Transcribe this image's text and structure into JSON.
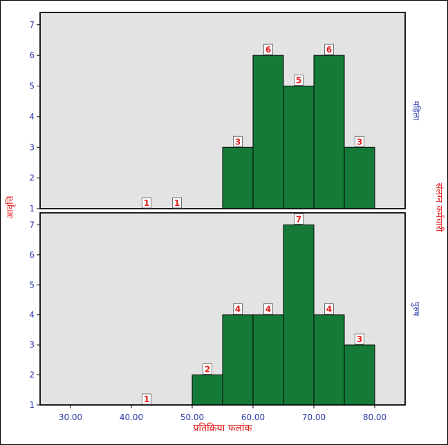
{
  "chart_data": {
    "type": "bar",
    "x_axis_label": "प्रतिक्रिया फलांक",
    "y_axis_label": "आवृत्ति",
    "right_label": "संलग्न कर्मचारी",
    "x_range": [
      25,
      85
    ],
    "x_ticks": [
      "30.00",
      "40.00",
      "50.00",
      "60.00",
      "70.00",
      "80.00"
    ],
    "y_range": [
      1,
      7.4
    ],
    "y_ticks": [
      "1",
      "2",
      "3",
      "4",
      "5",
      "6",
      "7"
    ],
    "colors": {
      "bar": "#157a37",
      "plot_bg": "#e3e3e3",
      "label": "#e11d1d",
      "tick": "#2b3aa8"
    },
    "panels": [
      {
        "label": "महिला",
        "bars": [
          {
            "x0": 55,
            "x1": 60,
            "value": 3
          },
          {
            "x0": 60,
            "x1": 65,
            "value": 6
          },
          {
            "x0": 65,
            "x1": 70,
            "value": 5
          },
          {
            "x0": 70,
            "x1": 75,
            "value": 6
          },
          {
            "x0": 75,
            "x1": 80,
            "value": 3
          }
        ],
        "labels": [
          {
            "x": 42.5,
            "value": 1
          },
          {
            "x": 47.5,
            "value": 1
          },
          {
            "x": 57.5,
            "value": 3
          },
          {
            "x": 62.5,
            "value": 6
          },
          {
            "x": 67.5,
            "value": 5
          },
          {
            "x": 72.5,
            "value": 6
          },
          {
            "x": 77.5,
            "value": 3
          }
        ]
      },
      {
        "label": "पुरुष",
        "bars": [
          {
            "x0": 50,
            "x1": 55,
            "value": 2
          },
          {
            "x0": 55,
            "x1": 60,
            "value": 4
          },
          {
            "x0": 60,
            "x1": 65,
            "value": 4
          },
          {
            "x0": 65,
            "x1": 70,
            "value": 7
          },
          {
            "x0": 70,
            "x1": 75,
            "value": 4
          },
          {
            "x0": 75,
            "x1": 80,
            "value": 3
          }
        ],
        "labels": [
          {
            "x": 42.5,
            "value": 1
          },
          {
            "x": 52.5,
            "value": 2
          },
          {
            "x": 57.5,
            "value": 4
          },
          {
            "x": 62.5,
            "value": 4
          },
          {
            "x": 67.5,
            "value": 7
          },
          {
            "x": 72.5,
            "value": 4
          },
          {
            "x": 77.5,
            "value": 3
          }
        ]
      }
    ]
  }
}
